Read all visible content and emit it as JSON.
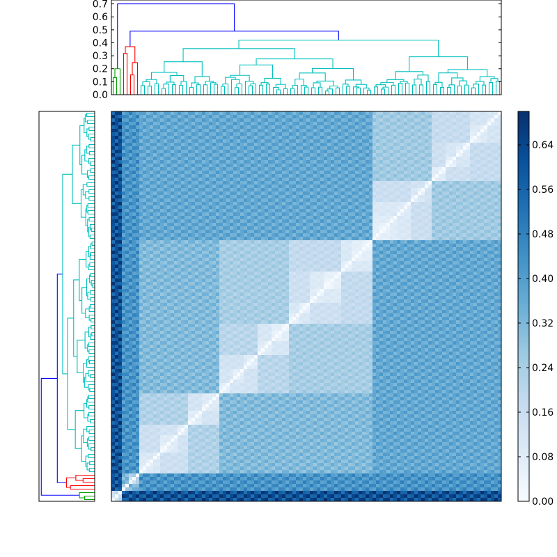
{
  "chart_data": {
    "type": "heatmap",
    "title": "",
    "xlabel": "",
    "ylabel": "",
    "matrix_size": 112,
    "dendrogram": {
      "yticks": [
        "0.0",
        "0.1",
        "0.2",
        "0.3",
        "0.4",
        "0.5",
        "0.6",
        "0.7"
      ],
      "ylim": [
        0,
        0.73
      ],
      "link_colors": {
        "cluster_small": "#00a000",
        "cluster_mid": "#ff0000",
        "cluster_large": "#00bfbf",
        "above_threshold": "#0000ff"
      },
      "clusters": [
        {
          "color": "cluster_small",
          "leaves": 3,
          "root_height": 0.2
        },
        {
          "color": "cluster_mid",
          "leaves": 5,
          "root_height": 0.37
        },
        {
          "color": "cluster_large",
          "leaves": 104,
          "root_height": 0.42
        }
      ],
      "upper_merges": [
        {
          "height": 0.49,
          "color": "above_threshold"
        },
        {
          "height": 0.7,
          "color": "above_threshold"
        }
      ]
    },
    "colorbar": {
      "colormap": "Blues",
      "range": [
        0.0,
        0.7
      ],
      "ticks": [
        "0.00",
        "0.08",
        "0.16",
        "0.24",
        "0.32",
        "0.40",
        "0.48",
        "0.56",
        "0.64"
      ]
    }
  }
}
